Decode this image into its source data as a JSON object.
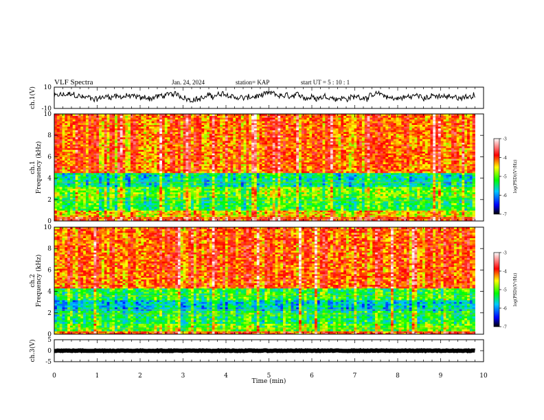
{
  "header": {
    "title": "VLF Spectra",
    "date": "Jan. 24, 2024",
    "station": "station= KAP",
    "start": "start  UT =   5 : 10 : 1"
  },
  "chart_data": [
    {
      "type": "line",
      "panel": "ch1-waveform",
      "ylabel": "ch.1(V)",
      "ylim": [
        -10,
        10
      ],
      "yticks": [
        10,
        -10
      ],
      "xlim": [
        0,
        10
      ],
      "x_extent": [
        0,
        9.8
      ],
      "amplitude_range": [
        -4,
        6
      ],
      "color": "#000000"
    },
    {
      "type": "heatmap",
      "panel": "ch1-spectrogram",
      "ylabel_line1": "ch.1",
      "ylabel_line2": "Frequency (kHz)",
      "ylim": [
        0,
        10
      ],
      "yticks": [
        0,
        2,
        4,
        6,
        8,
        10
      ],
      "xlim": [
        0,
        10
      ],
      "x_extent": [
        0,
        9.8
      ],
      "colorbar": {
        "label": "log(PSD)(V²/Hz)",
        "range": [
          -7,
          -3
        ],
        "ticks": [
          -3,
          -4,
          -5,
          -6,
          -7
        ],
        "tick_labels": [
          "-3",
          "-4",
          "-5",
          "-6",
          "-7"
        ]
      },
      "bands": [
        {
          "f": [
            0,
            0.4
          ],
          "level": -3.9
        },
        {
          "f": [
            0.4,
            1.0
          ],
          "level": -4.6
        },
        {
          "f": [
            1.0,
            2.2
          ],
          "level": -5.3
        },
        {
          "f": [
            2.2,
            3.2
          ],
          "level": -5.0
        },
        {
          "f": [
            3.2,
            4.5
          ],
          "level": -5.6
        },
        {
          "f": [
            4.5,
            10.0
          ],
          "level": -4.2
        }
      ]
    },
    {
      "type": "heatmap",
      "panel": "ch2-spectrogram",
      "ylabel_line1": "ch.2",
      "ylabel_line2": "Frequency (kHz)",
      "ylim": [
        0,
        10
      ],
      "yticks": [
        0,
        2,
        4,
        6,
        8,
        10
      ],
      "xlim": [
        0,
        10
      ],
      "x_extent": [
        0,
        9.8
      ],
      "colorbar": {
        "label": "log(PSD)(V²/Hz)",
        "range": [
          -7,
          -3
        ],
        "ticks": [
          -3,
          -4,
          -5,
          -6,
          -7
        ],
        "tick_labels": [
          "-3",
          "-4",
          "-5",
          "-6",
          "-7"
        ]
      },
      "bands": [
        {
          "f": [
            0,
            0.3
          ],
          "level": -4.0
        },
        {
          "f": [
            0.3,
            1.0
          ],
          "level": -5.0
        },
        {
          "f": [
            1.0,
            2.2
          ],
          "level": -5.3
        },
        {
          "f": [
            2.2,
            3.2
          ],
          "level": -5.7
        },
        {
          "f": [
            3.2,
            4.3
          ],
          "level": -5.2
        },
        {
          "f": [
            4.3,
            10.0
          ],
          "level": -4.1
        }
      ]
    },
    {
      "type": "line",
      "panel": "ch3-waveform",
      "ylabel": "ch.3(V)",
      "ylim": [
        -5,
        5
      ],
      "yticks": [
        5,
        0,
        -5
      ],
      "xlim": [
        0,
        10
      ],
      "x_extent": [
        0,
        9.8
      ],
      "amplitude_range": [
        -0.2,
        0.2
      ],
      "color": "#000000"
    }
  ],
  "xaxis": {
    "label": "Time (min)",
    "ticks": [
      0,
      1,
      2,
      3,
      4,
      5,
      6,
      7,
      8,
      9,
      10
    ],
    "tick_labels": [
      "0",
      "1",
      "2",
      "3",
      "4",
      "5",
      "6",
      "7",
      "8",
      "9",
      "10"
    ]
  }
}
